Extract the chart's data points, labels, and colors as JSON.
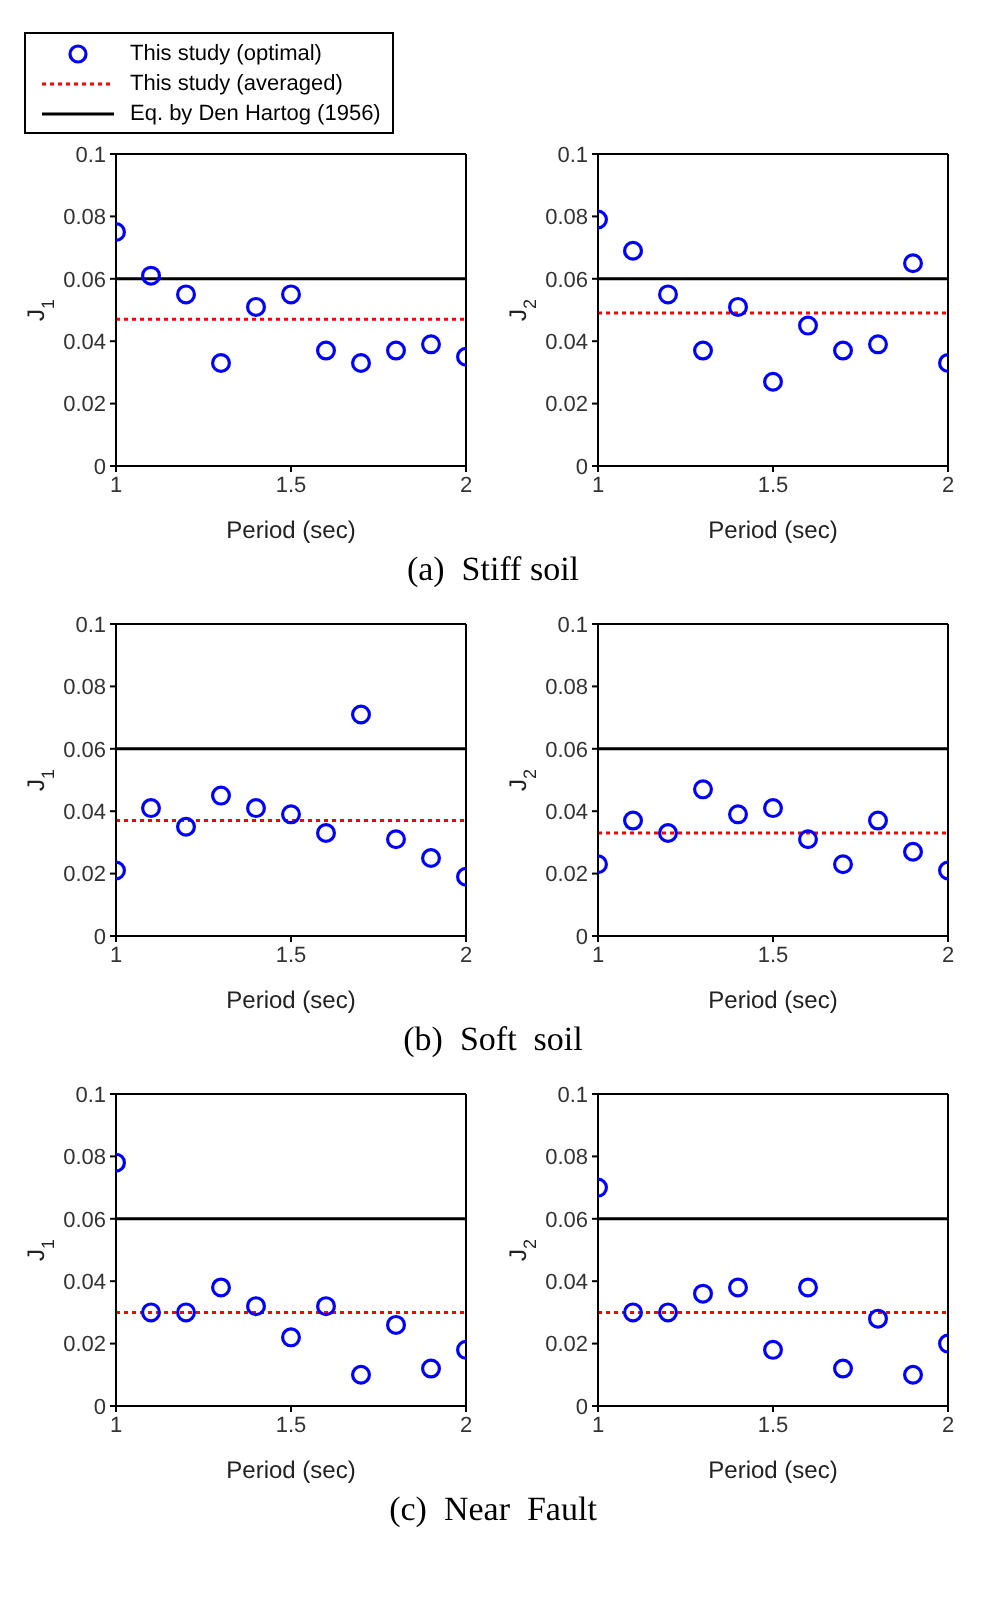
{
  "chart_data": [
    {
      "type": "scatter",
      "xlabel": "Period (sec)",
      "ylabel": "J$_{1}$",
      "xlim": [
        1,
        2
      ],
      "xticks": [
        1,
        1.5,
        2
      ],
      "ylim": [
        0,
        0.1
      ],
      "yticks": [
        0,
        0.02,
        0.04,
        0.06,
        0.08,
        0.1
      ],
      "legend": "top",
      "annotations": [
        "(a)  Stiff soil"
      ],
      "series": [
        {
          "name": "This study (optimal)",
          "marker": "circle",
          "color": "#0000ff",
          "x": [
            1,
            1.1,
            1.2,
            1.3,
            1.4,
            1.5,
            1.6,
            1.7,
            1.8,
            1.9,
            2
          ],
          "values": [
            0.075,
            0.061,
            0.055,
            0.033,
            0.051,
            0.055,
            0.037,
            0.033,
            0.037,
            0.039,
            0.035
          ]
        },
        {
          "name": "This study (averaged)",
          "type": "line",
          "line_style": "dotted",
          "color": "#ff0000",
          "x": [
            1,
            2
          ],
          "values": [
            0.047,
            0.047
          ]
        },
        {
          "name": "Eq. by Den Hartog (1956)",
          "type": "line",
          "line_style": "solid",
          "color": "#000000",
          "x": [
            1,
            2
          ],
          "values": [
            0.06,
            0.06
          ]
        }
      ]
    },
    {
      "type": "scatter",
      "xlabel": "Period (sec)",
      "ylabel": "J$_{2}$",
      "xlim": [
        1,
        2
      ],
      "xticks": [
        1,
        1.5,
        2
      ],
      "ylim": [
        0,
        0.1
      ],
      "yticks": [
        0,
        0.02,
        0.04,
        0.06,
        0.08,
        0.1
      ],
      "series": [
        {
          "marker": "circle",
          "color": "#0000ff",
          "x": [
            1,
            1.1,
            1.2,
            1.3,
            1.4,
            1.5,
            1.6,
            1.7,
            1.8,
            1.9,
            2
          ],
          "values": [
            0.079,
            0.069,
            0.055,
            0.037,
            0.051,
            0.027,
            0.045,
            0.037,
            0.039,
            0.065,
            0.033
          ]
        },
        {
          "type": "line",
          "line_style": "dotted",
          "color": "#ff0000",
          "x": [
            1,
            2
          ],
          "values": [
            0.049,
            0.049
          ]
        },
        {
          "type": "line",
          "line_style": "solid",
          "color": "#000000",
          "x": [
            1,
            2
          ],
          "values": [
            0.06,
            0.06
          ]
        }
      ]
    },
    {
      "type": "scatter",
      "xlabel": "Period (sec)",
      "ylabel": "J$_{1}$",
      "xlim": [
        1,
        2
      ],
      "xticks": [
        1,
        1.5,
        2
      ],
      "ylim": [
        0,
        0.1
      ],
      "yticks": [
        0,
        0.02,
        0.04,
        0.06,
        0.08,
        0.1
      ],
      "annotations": [
        "(b)  Soft  soil"
      ],
      "series": [
        {
          "marker": "circle",
          "color": "#0000ff",
          "x": [
            1,
            1.1,
            1.2,
            1.3,
            1.4,
            1.5,
            1.6,
            1.7,
            1.8,
            1.9,
            2
          ],
          "values": [
            0.021,
            0.041,
            0.035,
            0.045,
            0.041,
            0.039,
            0.033,
            0.071,
            0.031,
            0.025,
            0.019
          ]
        },
        {
          "type": "line",
          "line_style": "dotted",
          "color": "#ff0000",
          "x": [
            1,
            2
          ],
          "values": [
            0.037,
            0.037
          ]
        },
        {
          "type": "line",
          "line_style": "solid",
          "color": "#000000",
          "x": [
            1,
            2
          ],
          "values": [
            0.06,
            0.06
          ]
        }
      ]
    },
    {
      "type": "scatter",
      "xlabel": "Period (sec)",
      "ylabel": "J$_{2}$",
      "xlim": [
        1,
        2
      ],
      "xticks": [
        1,
        1.5,
        2
      ],
      "ylim": [
        0,
        0.1
      ],
      "yticks": [
        0,
        0.02,
        0.04,
        0.06,
        0.08,
        0.1
      ],
      "series": [
        {
          "marker": "circle",
          "color": "#0000ff",
          "x": [
            1,
            1.1,
            1.2,
            1.3,
            1.4,
            1.5,
            1.6,
            1.7,
            1.8,
            1.9,
            2
          ],
          "values": [
            0.023,
            0.037,
            0.033,
            0.047,
            0.039,
            0.041,
            0.031,
            0.023,
            0.037,
            0.027,
            0.021
          ]
        },
        {
          "type": "line",
          "line_style": "dotted",
          "color": "#ff0000",
          "x": [
            1,
            2
          ],
          "values": [
            0.033,
            0.033
          ]
        },
        {
          "type": "line",
          "line_style": "solid",
          "color": "#000000",
          "x": [
            1,
            2
          ],
          "values": [
            0.06,
            0.06
          ]
        }
      ]
    },
    {
      "type": "scatter",
      "xlabel": "Period (sec)",
      "ylabel": "J$_{1}$",
      "xlim": [
        1,
        2
      ],
      "xticks": [
        1,
        1.5,
        2
      ],
      "ylim": [
        0,
        0.1
      ],
      "yticks": [
        0,
        0.02,
        0.04,
        0.06,
        0.08,
        0.1
      ],
      "annotations": [
        "(c)  Near  Fault"
      ],
      "series": [
        {
          "marker": "circle",
          "color": "#0000ff",
          "x": [
            1,
            1.1,
            1.2,
            1.3,
            1.4,
            1.5,
            1.6,
            1.7,
            1.8,
            1.9,
            2
          ],
          "values": [
            0.078,
            0.03,
            0.03,
            0.038,
            0.032,
            0.022,
            0.032,
            0.01,
            0.026,
            0.012,
            0.018
          ]
        },
        {
          "type": "line",
          "line_style": "dotted",
          "color": "#ff0000",
          "x": [
            1,
            2
          ],
          "values": [
            0.03,
            0.03
          ]
        },
        {
          "type": "line",
          "line_style": "solid",
          "color": "#000000",
          "x": [
            1,
            2
          ],
          "values": [
            0.06,
            0.06
          ]
        }
      ]
    },
    {
      "type": "scatter",
      "xlabel": "Period (sec)",
      "ylabel": "J$_{2}$",
      "xlim": [
        1,
        2
      ],
      "xticks": [
        1,
        1.5,
        2
      ],
      "ylim": [
        0,
        0.1
      ],
      "yticks": [
        0,
        0.02,
        0.04,
        0.06,
        0.08,
        0.1
      ],
      "series": [
        {
          "marker": "circle",
          "color": "#0000ff",
          "x": [
            1,
            1.1,
            1.2,
            1.3,
            1.4,
            1.5,
            1.6,
            1.7,
            1.8,
            1.9,
            2
          ],
          "values": [
            0.07,
            0.03,
            0.03,
            0.036,
            0.038,
            0.018,
            0.038,
            0.012,
            0.028,
            0.01,
            0.02
          ]
        },
        {
          "type": "line",
          "line_style": "dotted",
          "color": "#ff0000",
          "x": [
            1,
            2
          ],
          "values": [
            0.03,
            0.03
          ]
        },
        {
          "type": "line",
          "line_style": "solid",
          "color": "#000000",
          "x": [
            1,
            2
          ],
          "values": [
            0.06,
            0.06
          ]
        }
      ]
    }
  ]
}
